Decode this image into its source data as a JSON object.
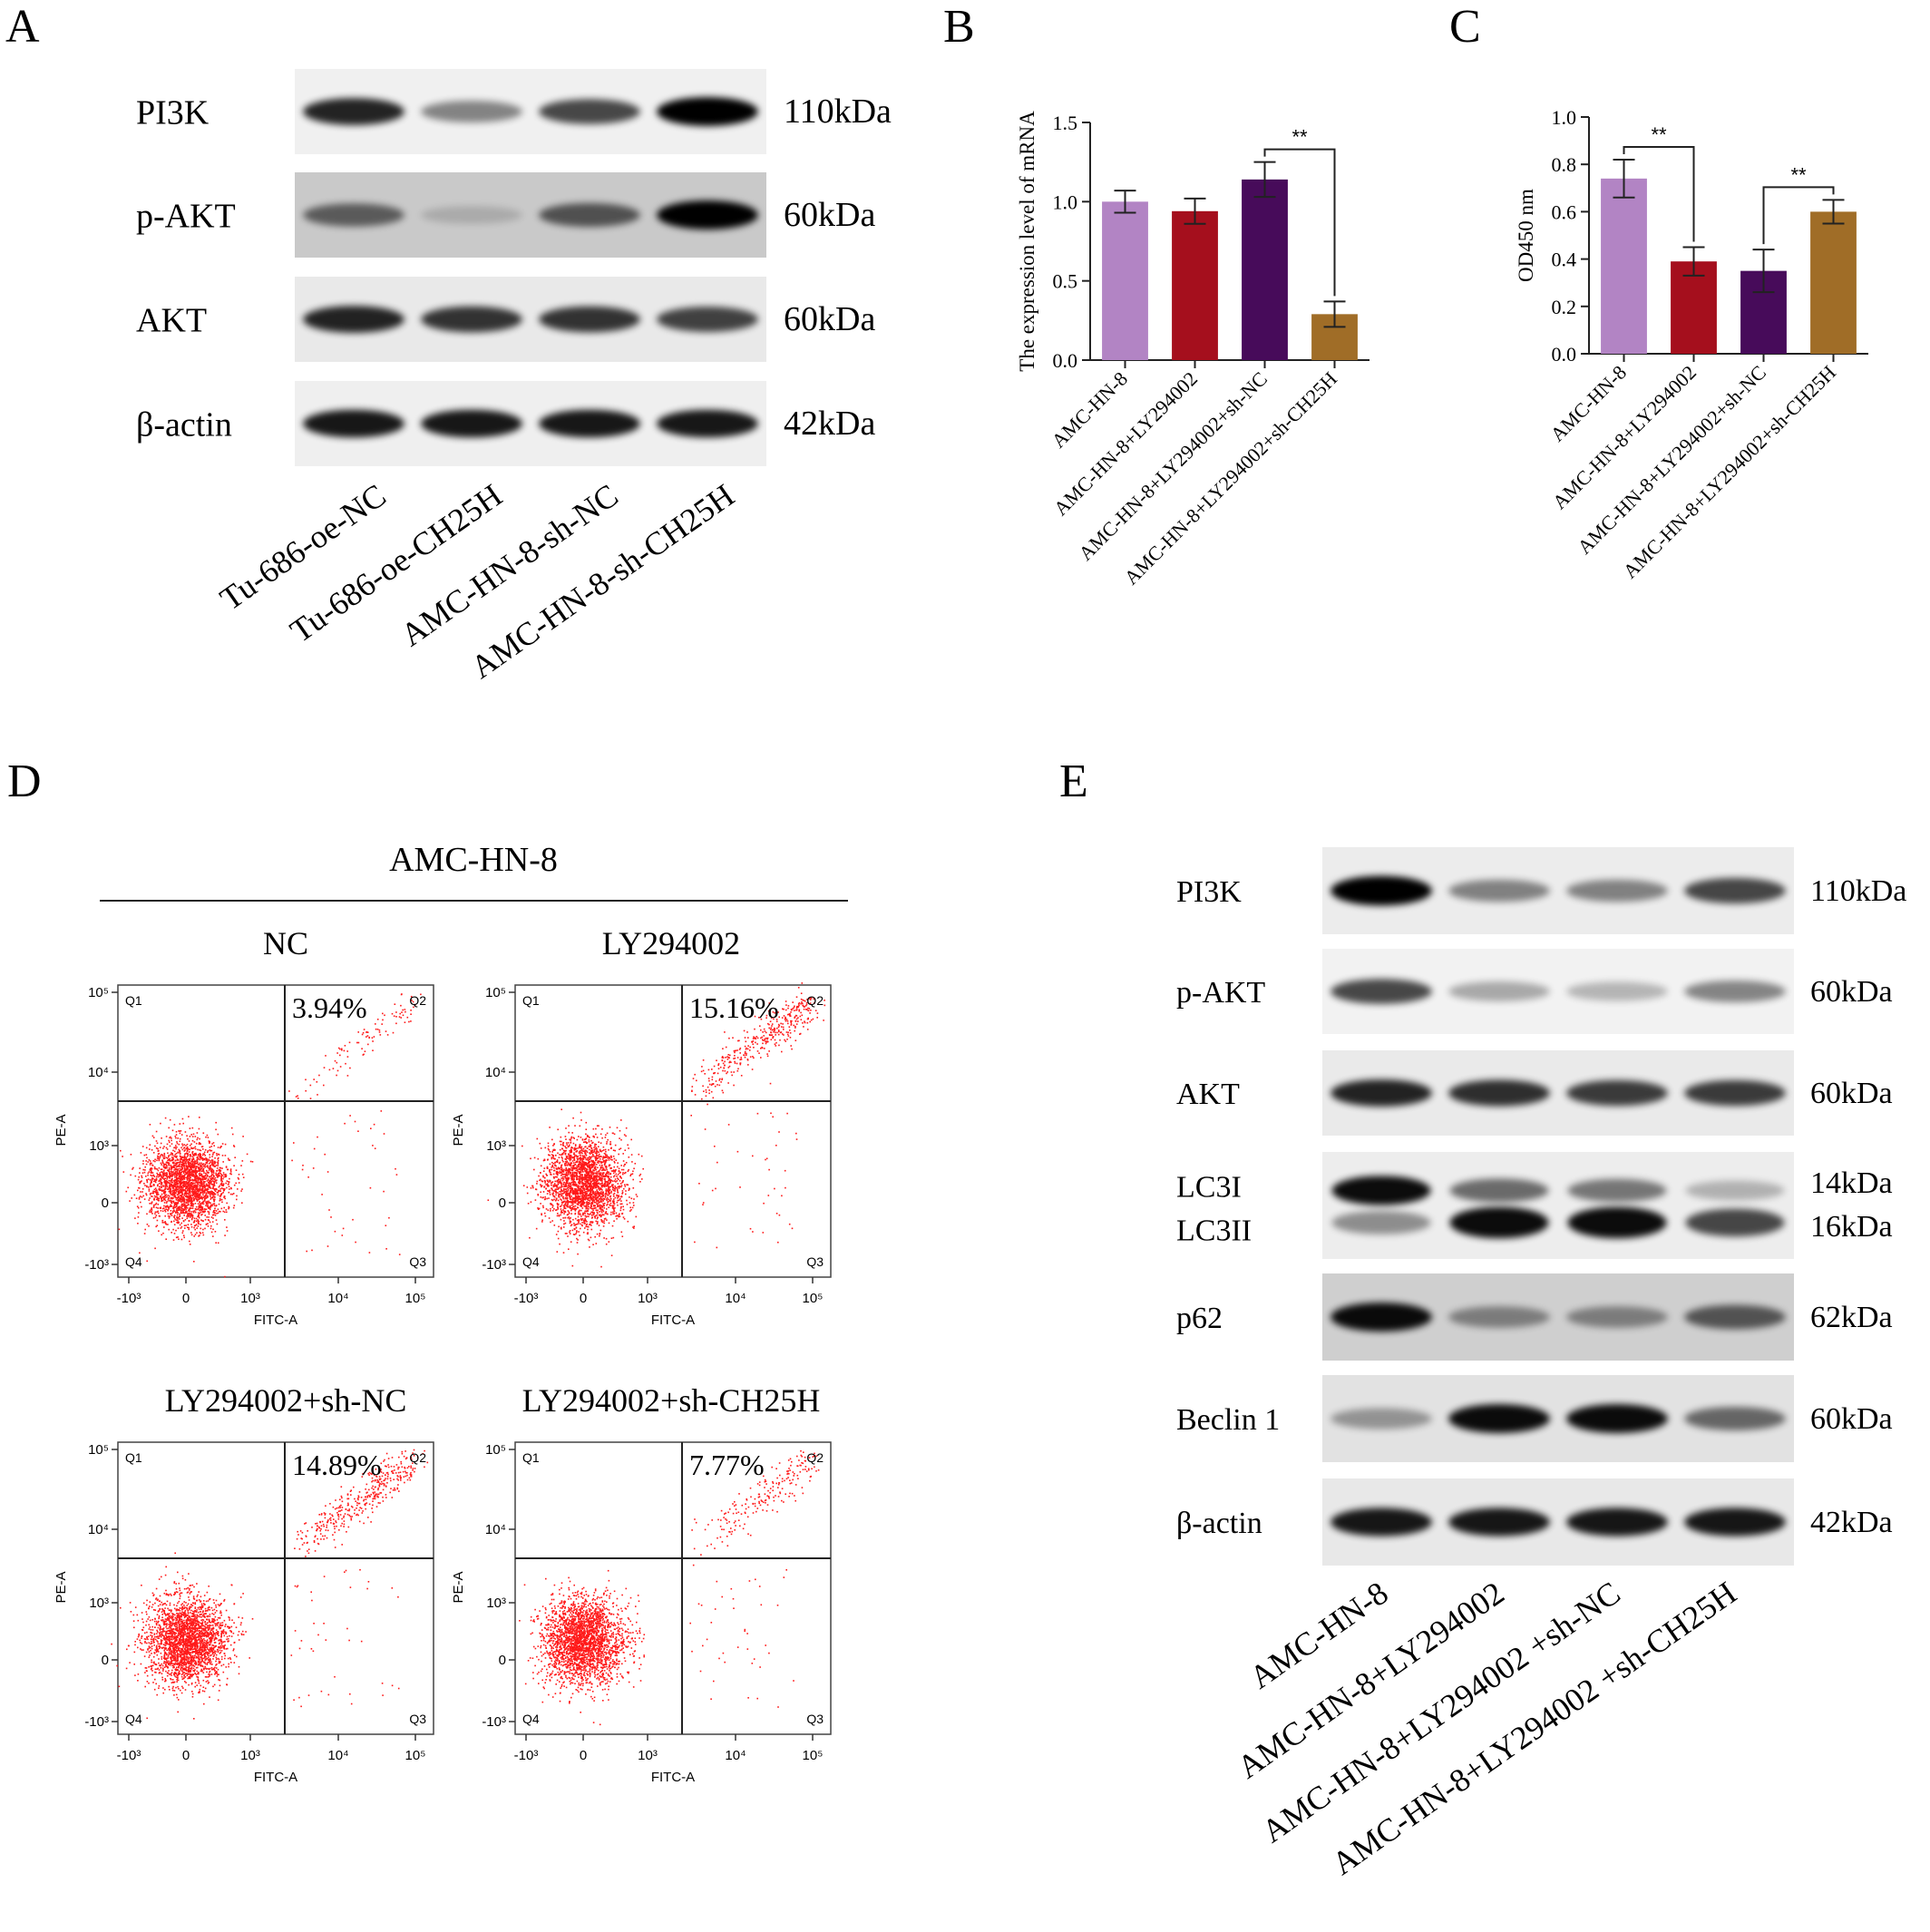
{
  "figure": {
    "panel_letters": [
      "A",
      "B",
      "C",
      "D",
      "E"
    ]
  },
  "panel_a": {
    "blots": [
      {
        "protein": "PI3K",
        "kda": "110kDa",
        "intensity": [
          0.85,
          0.45,
          0.7,
          1.0
        ]
      },
      {
        "protein": "p-AKT",
        "kda": "60kDa",
        "intensity": [
          0.55,
          0.15,
          0.6,
          1.0
        ]
      },
      {
        "protein": "AKT",
        "kda": "60kDa",
        "intensity": [
          0.85,
          0.78,
          0.78,
          0.72
        ]
      },
      {
        "protein": "β-actin",
        "kda": "42kDa",
        "intensity": [
          0.9,
          0.9,
          0.9,
          0.9
        ]
      }
    ],
    "lanes": [
      "Tu-686-oe-NC",
      "Tu-686-oe-CH25H",
      "AMC-HN-8-sh-NC",
      "AMC-HN-8-sh-CH25H"
    ]
  },
  "panel_e": {
    "blots": [
      {
        "protein": "PI3K",
        "kda": "110kDa",
        "intensity": [
          1.0,
          0.45,
          0.45,
          0.7
        ]
      },
      {
        "protein": "p-AKT",
        "kda": "60kDa",
        "intensity": [
          0.7,
          0.3,
          0.25,
          0.45
        ]
      },
      {
        "protein": "AKT",
        "kda": "60kDa",
        "intensity": [
          0.85,
          0.8,
          0.75,
          0.75
        ]
      },
      {
        "protein": "LC3I",
        "protein2": "LC3II",
        "kda": "14kDa",
        "kda2": "16kDa",
        "intensity": [
          0.95,
          0.55,
          0.5,
          0.25
        ],
        "intensity2": [
          0.4,
          0.95,
          0.95,
          0.7
        ]
      },
      {
        "protein": "p62",
        "kda": "62kDa",
        "intensity": [
          0.95,
          0.4,
          0.4,
          0.6
        ]
      },
      {
        "protein": "Beclin 1",
        "kda": "60kDa",
        "intensity": [
          0.35,
          0.95,
          0.95,
          0.55
        ]
      },
      {
        "protein": "β-actin",
        "kda": "42kDa",
        "intensity": [
          0.9,
          0.9,
          0.9,
          0.9
        ]
      }
    ],
    "lanes": [
      "AMC-HN-8",
      "AMC-HN-8+LY294002",
      "AMC-HN-8+LY294002 +sh-NC",
      "AMC-HN-8+LY294002 +sh-CH25H"
    ]
  },
  "panel_d": {
    "header": "AMC-HN-8",
    "quadrants": [
      "Q1",
      "Q2",
      "Q3",
      "Q4"
    ],
    "xlabel": "FITC-A",
    "ylabel": "PE-A",
    "x_ticks": [
      "-10³",
      "0",
      "10³",
      "10⁴",
      "10⁵"
    ],
    "y_ticks": [
      "10⁵",
      "10⁴",
      "10³",
      "0",
      "-10³"
    ],
    "plots": [
      {
        "title": "NC",
        "q2_percent": "3.94%",
        "q2_fraction": 0.0394
      },
      {
        "title": "LY294002",
        "q2_percent": "15.16%",
        "q2_fraction": 0.1516
      },
      {
        "title": "LY294002+sh-NC",
        "q2_percent": "14.89%",
        "q2_fraction": 0.1489
      },
      {
        "title": "LY294002+sh-CH25H",
        "q2_percent": "7.77%",
        "q2_fraction": 0.0777
      }
    ]
  },
  "chart_data": [
    {
      "type": "bar",
      "panel": "B",
      "categories": [
        "AMC-HN-8",
        "AMC-HN-8+LY294002",
        "AMC-HN-8+LY294002+sh-NC",
        "AMC-HN-8+LY294002+sh-CH25H"
      ],
      "values": [
        1.0,
        0.94,
        1.14,
        0.29
      ],
      "errors": [
        0.07,
        0.08,
        0.11,
        0.08
      ],
      "colors": [
        "#b284c4",
        "#a50f1d",
        "#470b5a",
        "#a06d27"
      ],
      "ylabel": "The expression level of mRNA",
      "ylim": [
        0,
        1.5
      ],
      "yticks": [
        "0.0",
        "0.5",
        "1.0",
        "1.5"
      ],
      "significance": [
        {
          "from": 2,
          "to": 3,
          "label": "**"
        }
      ]
    },
    {
      "type": "bar",
      "panel": "C",
      "categories": [
        "AMC-HN-8",
        "AMC-HN-8+LY294002",
        "AMC-HN-8+LY294002+sh-NC",
        "AMC-HN-8+LY294002+sh-CH25H"
      ],
      "values": [
        0.74,
        0.39,
        0.35,
        0.6
      ],
      "errors": [
        0.08,
        0.06,
        0.09,
        0.05
      ],
      "colors": [
        "#b284c4",
        "#a50f1d",
        "#470b5a",
        "#a06d27"
      ],
      "ylabel": "OD450 nm",
      "ylim": [
        0,
        1.0
      ],
      "yticks": [
        "0.0",
        "0.2",
        "0.4",
        "0.6",
        "0.8",
        "1.0"
      ],
      "significance": [
        {
          "from": 0,
          "to": 1,
          "label": "**"
        },
        {
          "from": 2,
          "to": 3,
          "label": "**"
        }
      ]
    }
  ]
}
